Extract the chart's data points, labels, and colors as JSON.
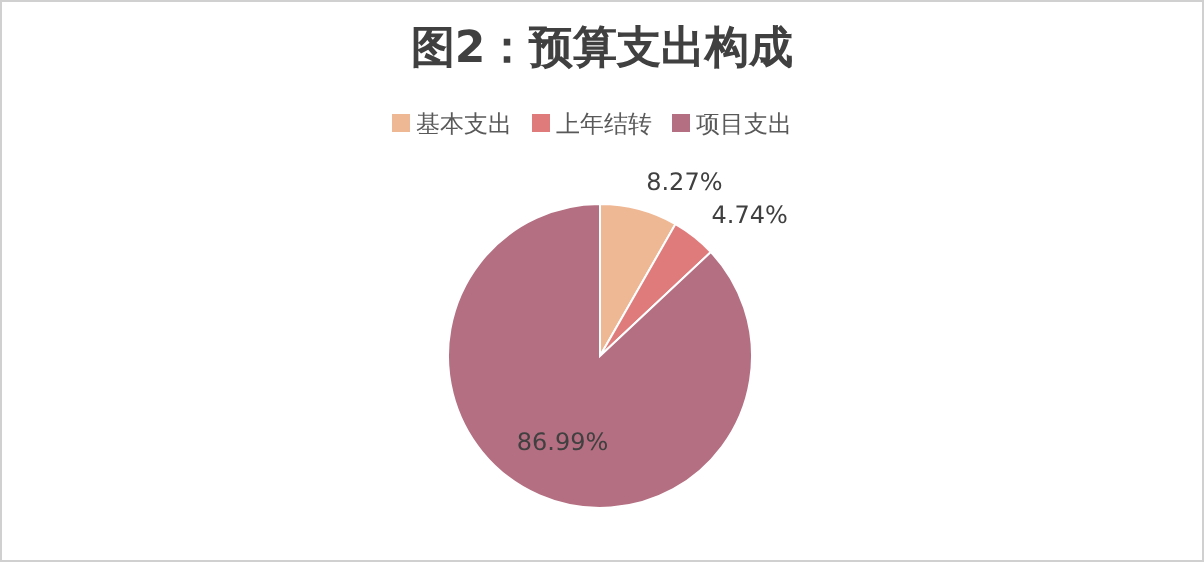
{
  "chart_data": {
    "type": "pie",
    "title": "图2：预算支出构成",
    "categories": [
      "基本支出",
      "上年结转",
      "项目支出"
    ],
    "values": [
      8.27,
      4.74,
      86.99
    ],
    "value_labels": [
      "8.27%",
      "4.74%",
      "86.99%"
    ],
    "colors": [
      "#efb894",
      "#e07b7c",
      "#b46f82"
    ],
    "legend": "top"
  }
}
